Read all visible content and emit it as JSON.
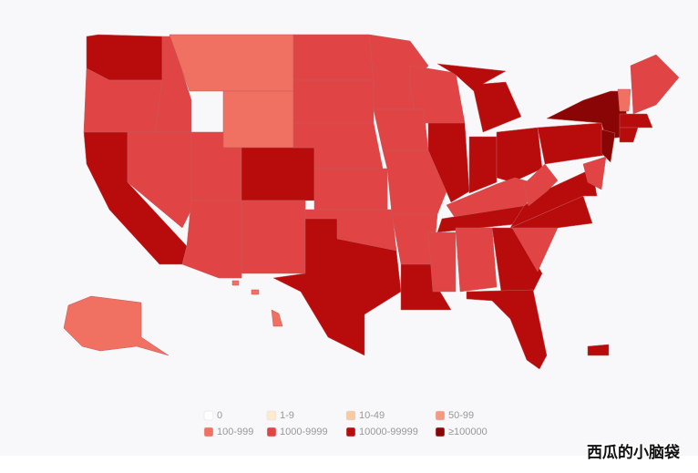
{
  "legend": {
    "items": [
      {
        "label": "0",
        "color": "#ffffff"
      },
      {
        "label": "1-9",
        "color": "#fdebd0"
      },
      {
        "label": "10-49",
        "color": "#f7c9a4"
      },
      {
        "label": "50-99",
        "color": "#f49a80"
      },
      {
        "label": "100-999",
        "color": "#f07062"
      },
      {
        "label": "1000-9999",
        "color": "#e04445"
      },
      {
        "label": "10000-99999",
        "color": "#b80b0c"
      },
      {
        "label": "≥100000",
        "color": "#8a0606"
      }
    ]
  },
  "watermark": "西瓜的小脑袋"
}
